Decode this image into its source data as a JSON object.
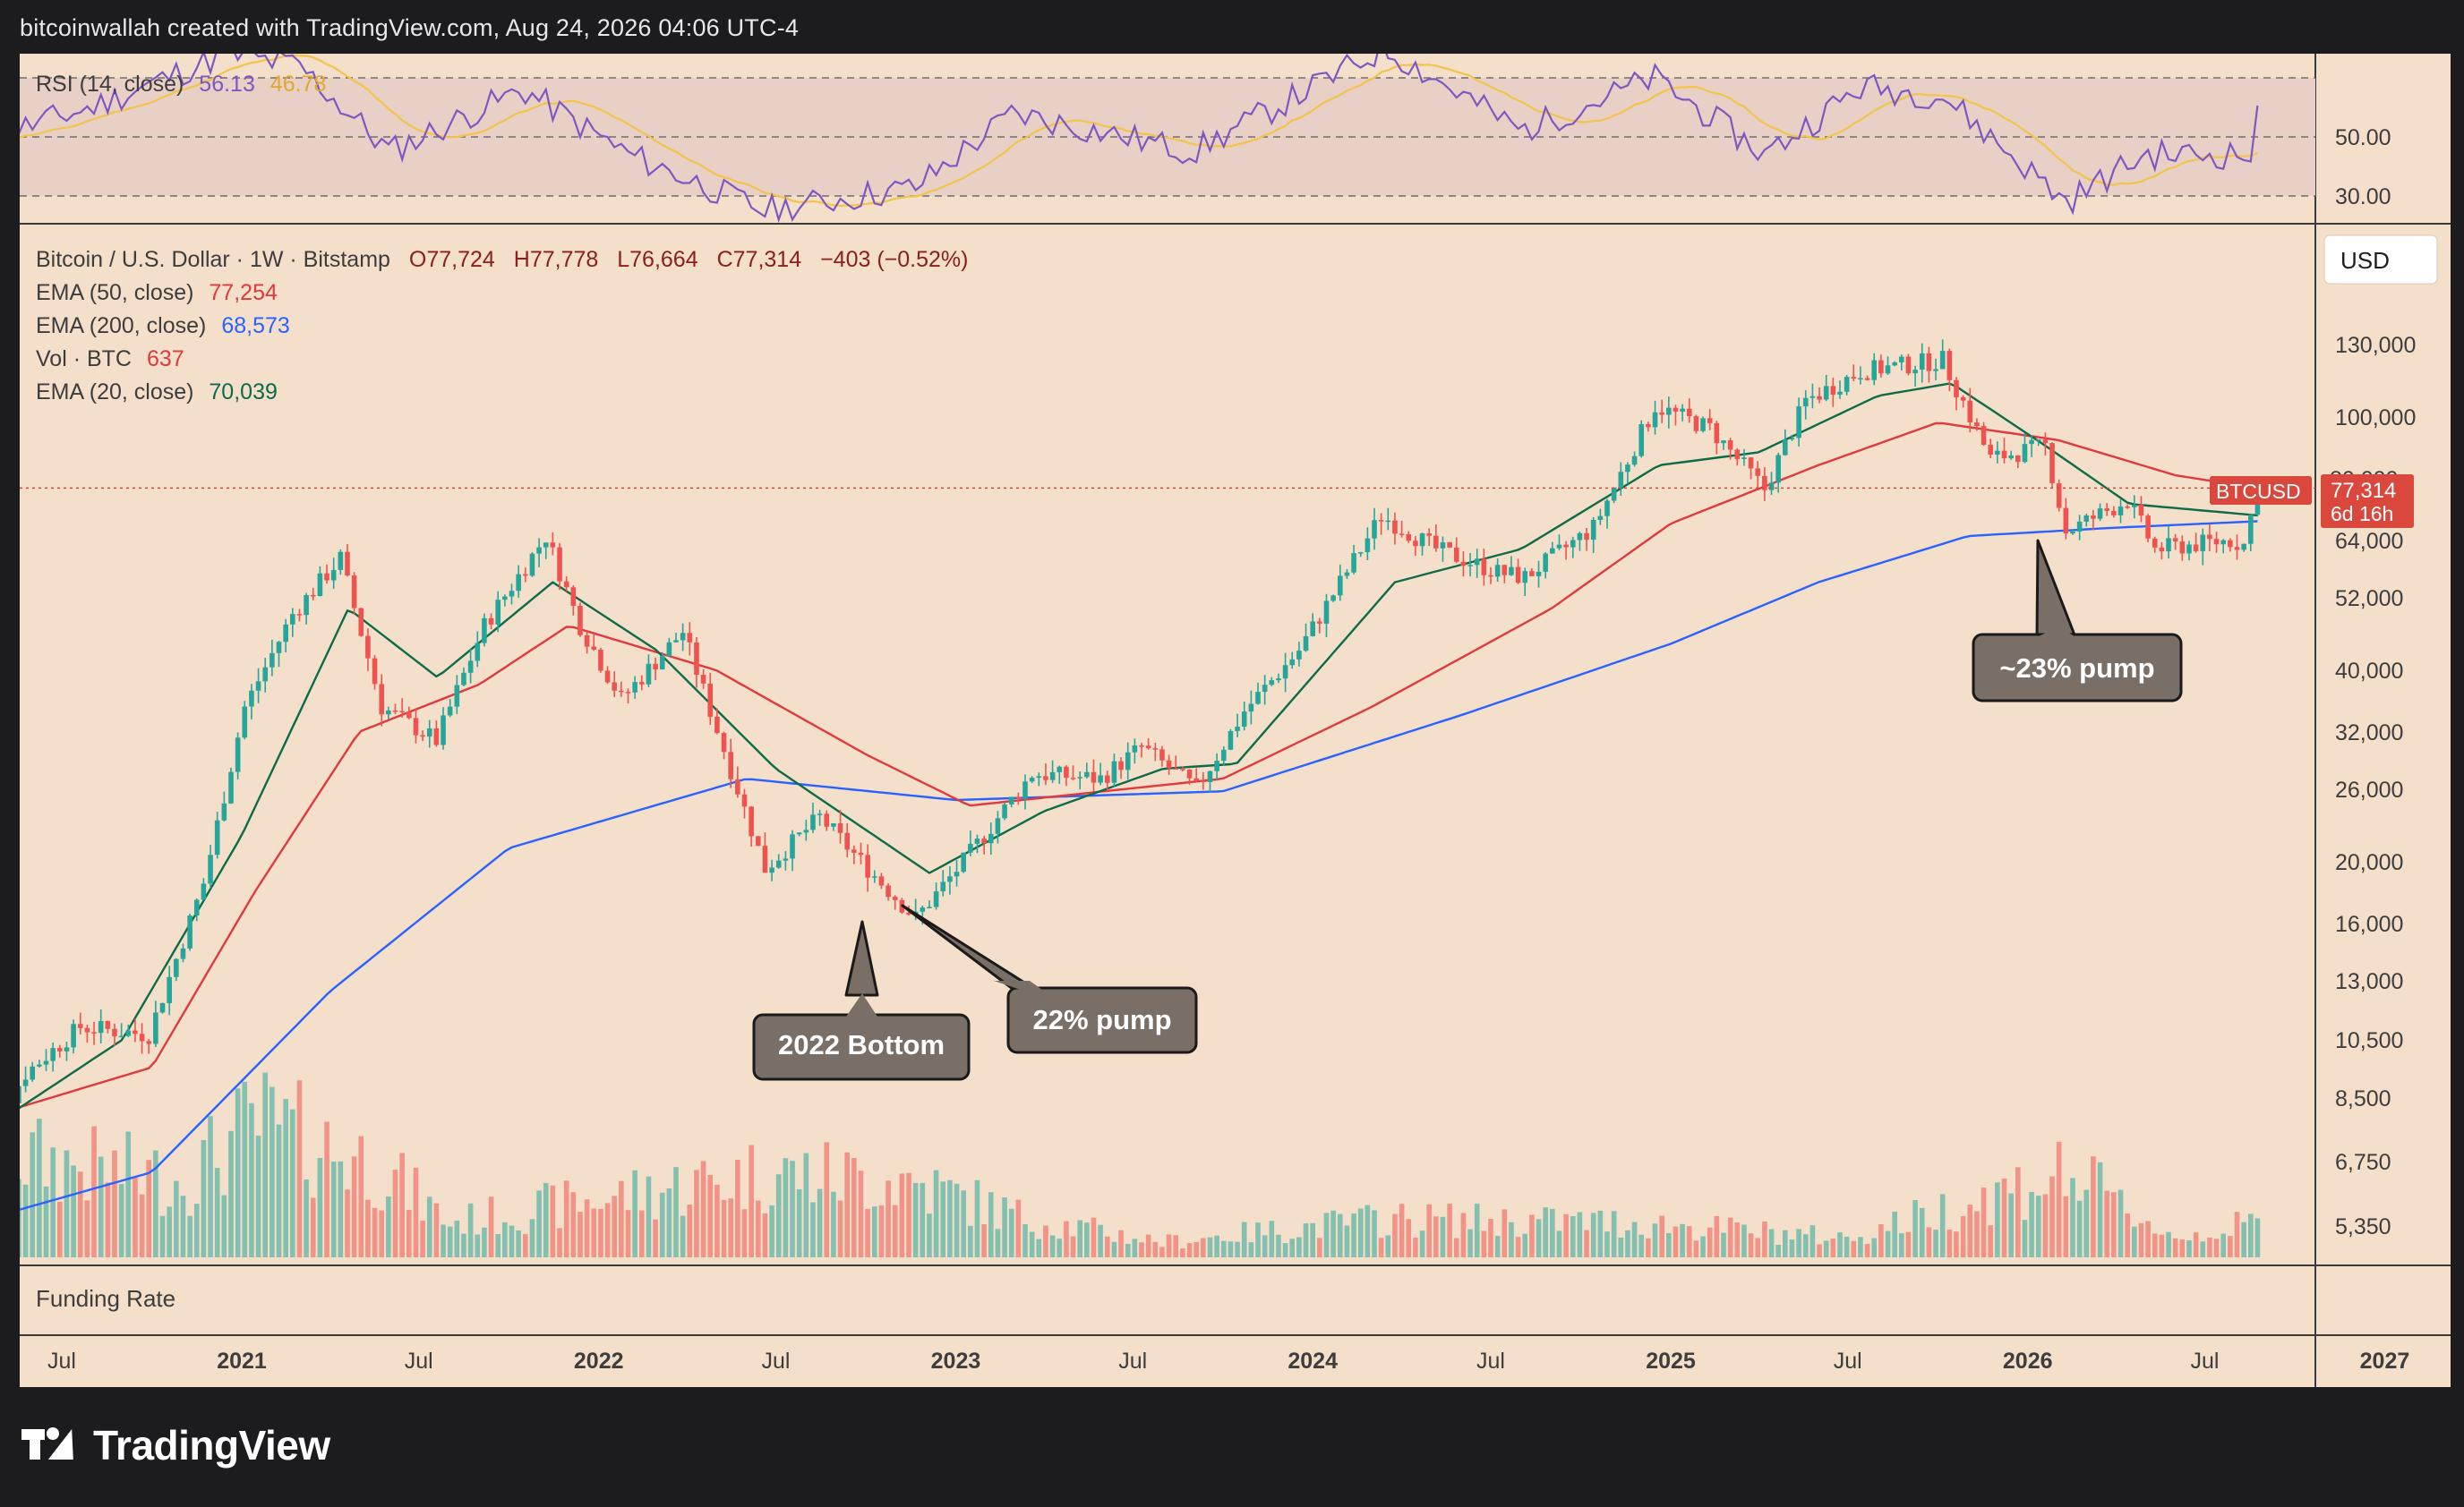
{
  "header": {
    "attribution": "bitcoinwallah created with TradingView.com, Aug 24, 2026 04:06 UTC-4"
  },
  "brand": {
    "logo_text": "TradingView"
  },
  "colors": {
    "background": "#f3dfca",
    "rsi_band": "#e8d0c6",
    "ema50": "#e0393e",
    "ema200": "#2962ff",
    "ema20": "#0e6b4a",
    "rsi_line": "#7e57c2",
    "rsi_ma": "#f3c34b",
    "up_candle": "#26a69a",
    "down_candle": "#ef5350",
    "callout_bg": "#7a6f66",
    "price_label": "#d9473d"
  },
  "rsi_panel": {
    "title": "RSI (14, close)",
    "value1": "56.13",
    "value2": "46.78",
    "levels": [
      "50.00",
      "30.00"
    ]
  },
  "main_legend": {
    "symbol": "Bitcoin / U.S. Dollar · 1W · Bitstamp",
    "ohlc": {
      "o": "O77,724",
      "h": "H77,778",
      "l": "L76,664",
      "c": "C77,314",
      "chg": "−403 (−0.52%)"
    },
    "ema50": {
      "label": "EMA (50, close)",
      "value": "77,254"
    },
    "ema200": {
      "label": "EMA (200, close)",
      "value": "68,573"
    },
    "vol": {
      "label": "Vol · BTC",
      "value": "637"
    },
    "ema20": {
      "label": "EMA (20, close)",
      "value": "70,039"
    }
  },
  "currency_button": "USD",
  "price_tag": {
    "symbol": "BTCUSD",
    "price": "77,314",
    "countdown": "6d 16h",
    "hidden_tick": "80,000"
  },
  "funding_panel": {
    "title": "Funding Rate"
  },
  "annotations": [
    {
      "text": "2022 Bottom"
    },
    {
      "text": "22% pump"
    },
    {
      "text": "~23% pump"
    }
  ],
  "chart_data": {
    "type": "candlestick",
    "scale": "log",
    "ylim": [
      4800,
      160000
    ],
    "y_ticks": [
      130000,
      100000,
      80000,
      64000,
      52000,
      40000,
      32000,
      26000,
      20000,
      16000,
      13000,
      10500,
      8500,
      6750,
      5350
    ],
    "y_tick_labels": [
      "130,000",
      "100,000",
      "80,000",
      "64,000",
      "52,000",
      "40,000",
      "32,000",
      "26,000",
      "20,000",
      "16,000",
      "13,000",
      "10,500",
      "8,500",
      "6,750",
      "5,350"
    ],
    "x_ticks": [
      "Jul",
      "2021",
      "Jul",
      "2022",
      "Jul",
      "2023",
      "Jul",
      "2024",
      "Jul",
      "2025",
      "Jul",
      "2026",
      "Jul",
      "2027",
      "Jul"
    ],
    "x_tick_dates": [
      "2020-07-01",
      "2021-01-01",
      "2021-07-01",
      "2022-01-01",
      "2022-07-01",
      "2023-01-01",
      "2023-07-01",
      "2024-01-01",
      "2024-07-01",
      "2025-01-01",
      "2025-07-01",
      "2026-01-01",
      "2026-07-01",
      "2027-01-01",
      "2027-07-01"
    ],
    "price_anchors": [
      {
        "date": "2020-03-30",
        "close": 6700
      },
      {
        "date": "2020-05-25",
        "close": 9300
      },
      {
        "date": "2020-07-20",
        "close": 11000
      },
      {
        "date": "2020-09-28",
        "close": 10700
      },
      {
        "date": "2020-11-23",
        "close": 18500
      },
      {
        "date": "2021-01-04",
        "close": 35000
      },
      {
        "date": "2021-02-22",
        "close": 49000
      },
      {
        "date": "2021-04-12",
        "close": 60000
      },
      {
        "date": "2021-05-24",
        "close": 35000
      },
      {
        "date": "2021-07-19",
        "close": 31000
      },
      {
        "date": "2021-09-06",
        "close": 47000
      },
      {
        "date": "2021-11-08",
        "close": 65000
      },
      {
        "date": "2021-12-13",
        "close": 47000
      },
      {
        "date": "2022-01-24",
        "close": 36000
      },
      {
        "date": "2022-03-28",
        "close": 46000
      },
      {
        "date": "2022-05-09",
        "close": 30000
      },
      {
        "date": "2022-06-20",
        "close": 19500
      },
      {
        "date": "2022-08-15",
        "close": 23500
      },
      {
        "date": "2022-10-03",
        "close": 19500
      },
      {
        "date": "2022-11-21",
        "close": 16300
      },
      {
        "date": "2023-01-09",
        "close": 20000
      },
      {
        "date": "2023-03-20",
        "close": 27500
      },
      {
        "date": "2023-05-29",
        "close": 27000
      },
      {
        "date": "2023-07-10",
        "close": 30300
      },
      {
        "date": "2023-09-04",
        "close": 26000
      },
      {
        "date": "2023-10-23",
        "close": 34500
      },
      {
        "date": "2023-12-18",
        "close": 43000
      },
      {
        "date": "2024-03-11",
        "close": 70000
      },
      {
        "date": "2024-05-06",
        "close": 62000
      },
      {
        "date": "2024-07-08",
        "close": 57000
      },
      {
        "date": "2024-08-05",
        "close": 56000
      },
      {
        "date": "2024-10-14",
        "close": 67000
      },
      {
        "date": "2024-12-16",
        "close": 104000
      },
      {
        "date": "2025-02-10",
        "close": 96000
      },
      {
        "date": "2025-04-07",
        "close": 77000
      },
      {
        "date": "2025-05-19",
        "close": 106000
      },
      {
        "date": "2025-07-14",
        "close": 118000
      },
      {
        "date": "2025-10-06",
        "close": 123000
      },
      {
        "date": "2025-11-24",
        "close": 86000
      },
      {
        "date": "2026-01-19",
        "close": 90000
      },
      {
        "date": "2026-02-09",
        "close": 66000
      },
      {
        "date": "2026-04-13",
        "close": 74000
      },
      {
        "date": "2026-05-11",
        "close": 62000
      },
      {
        "date": "2026-07-27",
        "close": 64000
      },
      {
        "date": "2026-08-10",
        "close": 63000
      },
      {
        "date": "2026-08-24",
        "close": 77314
      }
    ],
    "ema50_anchors": [
      {
        "date": "2020-03-30",
        "value": 7800
      },
      {
        "date": "2020-10-01",
        "value": 9500
      },
      {
        "date": "2021-01-15",
        "value": 18000
      },
      {
        "date": "2021-05-01",
        "value": 32000
      },
      {
        "date": "2021-09-01",
        "value": 38000
      },
      {
        "date": "2021-12-01",
        "value": 47000
      },
      {
        "date": "2022-05-01",
        "value": 40000
      },
      {
        "date": "2022-10-01",
        "value": 29500
      },
      {
        "date": "2023-01-15",
        "value": 24500
      },
      {
        "date": "2023-06-01",
        "value": 25800
      },
      {
        "date": "2023-10-01",
        "value": 27000
      },
      {
        "date": "2024-03-01",
        "value": 35000
      },
      {
        "date": "2024-09-01",
        "value": 50000
      },
      {
        "date": "2025-01-01",
        "value": 68000
      },
      {
        "date": "2025-06-01",
        "value": 84000
      },
      {
        "date": "2025-10-01",
        "value": 98000
      },
      {
        "date": "2026-02-01",
        "value": 92000
      },
      {
        "date": "2026-06-01",
        "value": 81000
      },
      {
        "date": "2026-08-24",
        "value": 77254
      }
    ],
    "ema200_anchors": [
      {
        "date": "2020-03-30",
        "value": 5400
      },
      {
        "date": "2020-10-01",
        "value": 6500
      },
      {
        "date": "2021-04-01",
        "value": 12500
      },
      {
        "date": "2021-10-01",
        "value": 21000
      },
      {
        "date": "2022-06-01",
        "value": 27000
      },
      {
        "date": "2023-01-01",
        "value": 25000
      },
      {
        "date": "2023-10-01",
        "value": 25800
      },
      {
        "date": "2024-06-01",
        "value": 34000
      },
      {
        "date": "2025-01-01",
        "value": 44000
      },
      {
        "date": "2025-06-01",
        "value": 55000
      },
      {
        "date": "2025-11-01",
        "value": 65000
      },
      {
        "date": "2026-04-01",
        "value": 67000
      },
      {
        "date": "2026-08-24",
        "value": 68573
      }
    ],
    "ema20_anchors": [
      {
        "date": "2020-03-30",
        "value": 7300
      },
      {
        "date": "2020-09-01",
        "value": 10500
      },
      {
        "date": "2021-01-01",
        "value": 22000
      },
      {
        "date": "2021-04-20",
        "value": 50000
      },
      {
        "date": "2021-07-20",
        "value": 39000
      },
      {
        "date": "2021-11-15",
        "value": 55000
      },
      {
        "date": "2022-03-01",
        "value": 43000
      },
      {
        "date": "2022-07-01",
        "value": 28000
      },
      {
        "date": "2022-12-05",
        "value": 19200
      },
      {
        "date": "2023-04-01",
        "value": 24000
      },
      {
        "date": "2023-08-01",
        "value": 28000
      },
      {
        "date": "2023-10-15",
        "value": 28500
      },
      {
        "date": "2024-03-25",
        "value": 55000
      },
      {
        "date": "2024-08-01",
        "value": 62000
      },
      {
        "date": "2024-12-20",
        "value": 84000
      },
      {
        "date": "2025-04-01",
        "value": 88000
      },
      {
        "date": "2025-08-01",
        "value": 108000
      },
      {
        "date": "2025-10-15",
        "value": 113000
      },
      {
        "date": "2026-01-15",
        "value": 91000
      },
      {
        "date": "2026-04-15",
        "value": 73000
      },
      {
        "date": "2026-08-24",
        "value": 70039
      }
    ],
    "rsi_anchors": [
      {
        "date": "2020-03-30",
        "value": 48
      },
      {
        "date": "2020-08-01",
        "value": 60
      },
      {
        "date": "2020-12-15",
        "value": 78
      },
      {
        "date": "2021-03-01",
        "value": 74
      },
      {
        "date": "2021-06-01",
        "value": 45
      },
      {
        "date": "2021-10-15",
        "value": 66
      },
      {
        "date": "2022-02-01",
        "value": 44
      },
      {
        "date": "2022-06-20",
        "value": 25
      },
      {
        "date": "2022-11-21",
        "value": 33
      },
      {
        "date": "2023-03-01",
        "value": 58
      },
      {
        "date": "2023-09-01",
        "value": 45
      },
      {
        "date": "2024-03-15",
        "value": 80
      },
      {
        "date": "2024-08-01",
        "value": 52
      },
      {
        "date": "2024-12-15",
        "value": 70
      },
      {
        "date": "2025-04-07",
        "value": 44
      },
      {
        "date": "2025-07-15",
        "value": 67
      },
      {
        "date": "2025-10-06",
        "value": 64
      },
      {
        "date": "2026-02-09",
        "value": 28
      },
      {
        "date": "2026-05-01",
        "value": 44
      },
      {
        "date": "2026-08-17",
        "value": 44
      },
      {
        "date": "2026-08-24",
        "value": 56
      }
    ],
    "rsi_levels": [
      70,
      50,
      30
    ],
    "rsi_ylim": [
      20,
      85
    ],
    "volume_scale_max": 40,
    "volume_anchors": [
      {
        "date": "2020-03-30",
        "value": 28
      },
      {
        "date": "2020-11-01",
        "value": 20
      },
      {
        "date": "2021-01-15",
        "value": 35
      },
      {
        "date": "2021-05-20",
        "value": 24
      },
      {
        "date": "2021-08-01",
        "value": 9
      },
      {
        "date": "2022-06-20",
        "value": 22
      },
      {
        "date": "2022-11-14",
        "value": 20
      },
      {
        "date": "2023-03-15",
        "value": 10
      },
      {
        "date": "2023-08-01",
        "value": 4
      },
      {
        "date": "2024-03-15",
        "value": 10
      },
      {
        "date": "2024-12-01",
        "value": 9
      },
      {
        "date": "2025-07-01",
        "value": 5
      },
      {
        "date": "2026-02-09",
        "value": 22
      },
      {
        "date": "2026-06-01",
        "value": 5
      },
      {
        "date": "2026-08-24",
        "value": 9
      }
    ]
  }
}
